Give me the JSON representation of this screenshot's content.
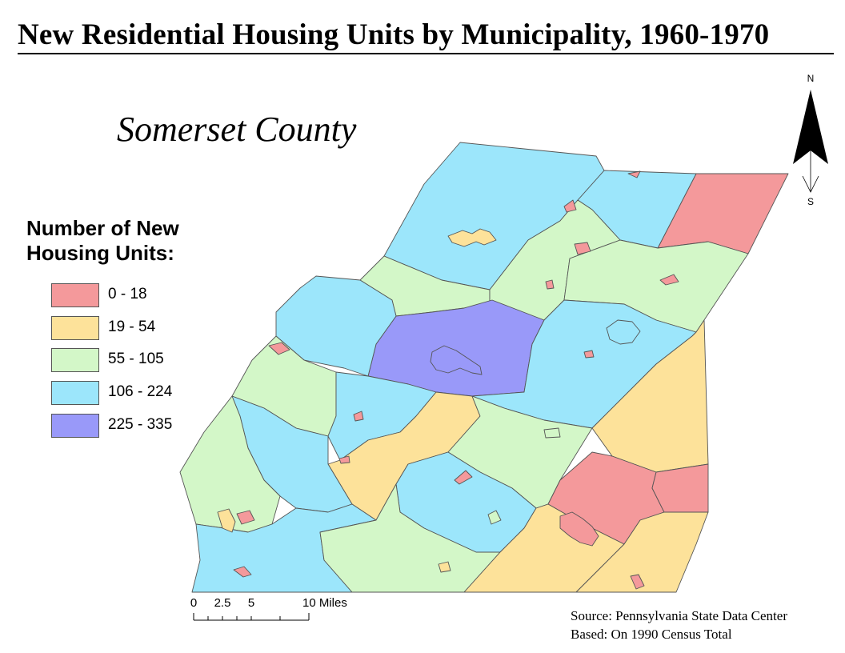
{
  "title": "New Residential Housing Units by Municipality, 1960-1970",
  "county": "Somerset County",
  "legend": {
    "title_line1": "Number of New",
    "title_line2": "Housing Units:",
    "classes": [
      {
        "label": "0 - 18",
        "color": "#f4999b"
      },
      {
        "label": "19 - 54",
        "color": "#fde29a"
      },
      {
        "label": "55 - 105",
        "color": "#d3f7c8"
      },
      {
        "label": "106 - 224",
        "color": "#9ce6fb"
      },
      {
        "label": "225 - 335",
        "color": "#9999f9"
      }
    ]
  },
  "scale_bar": {
    "tick_labels": [
      "0",
      "2.5",
      "5",
      "10 Miles"
    ]
  },
  "north_arrow": {
    "north": "N",
    "south": "S"
  },
  "source": {
    "line1": "Source: Pennsylvania State Data Center",
    "line2": "Based: On 1990 Census Total"
  },
  "colors": {
    "red": "#f4999b",
    "yellow": "#fde29a",
    "green": "#d3f7c8",
    "blue": "#9ce6fb",
    "purple": "#9999f9",
    "outline": "#555555"
  }
}
